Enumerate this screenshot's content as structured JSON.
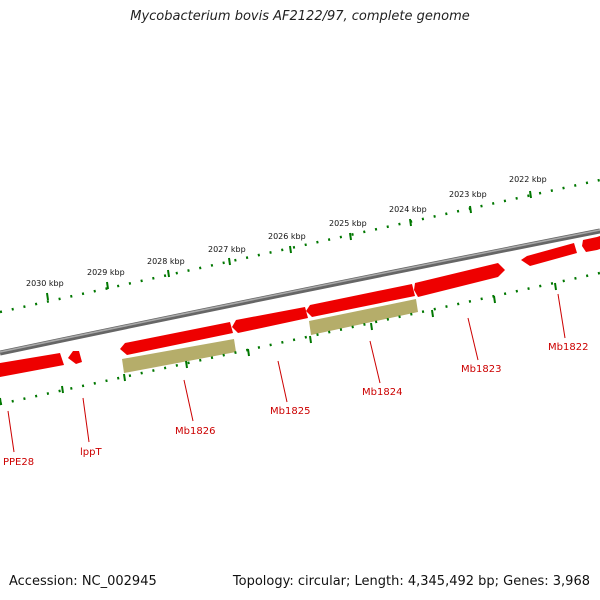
{
  "title": "Mycobacterium bovis AF2122/97, complete genome",
  "accession_label": "Accession: NC_002945",
  "topology_label": "Topology: circular; Length: 4,345,492 bp; Genes: 3,968",
  "colors": {
    "backbone": "#888888",
    "gene_forward": "#ee0000",
    "feature": "#b5ad6a",
    "ticks": "#007700",
    "gene_label": "#cc0000"
  },
  "ruler_labels": [
    "2022 kbp",
    "2023 kbp",
    "2024 kbp",
    "2025 kbp",
    "2026 kbp",
    "2027 kbp",
    "2028 kbp",
    "2029 kbp",
    "2030 kbp"
  ],
  "genes": [
    {
      "name": "Mb1822"
    },
    {
      "name": "Mb1823"
    },
    {
      "name": "Mb1824"
    },
    {
      "name": "Mb1825"
    },
    {
      "name": "Mb1826"
    },
    {
      "name": "lppT"
    },
    {
      "name": "PPE28"
    }
  ]
}
